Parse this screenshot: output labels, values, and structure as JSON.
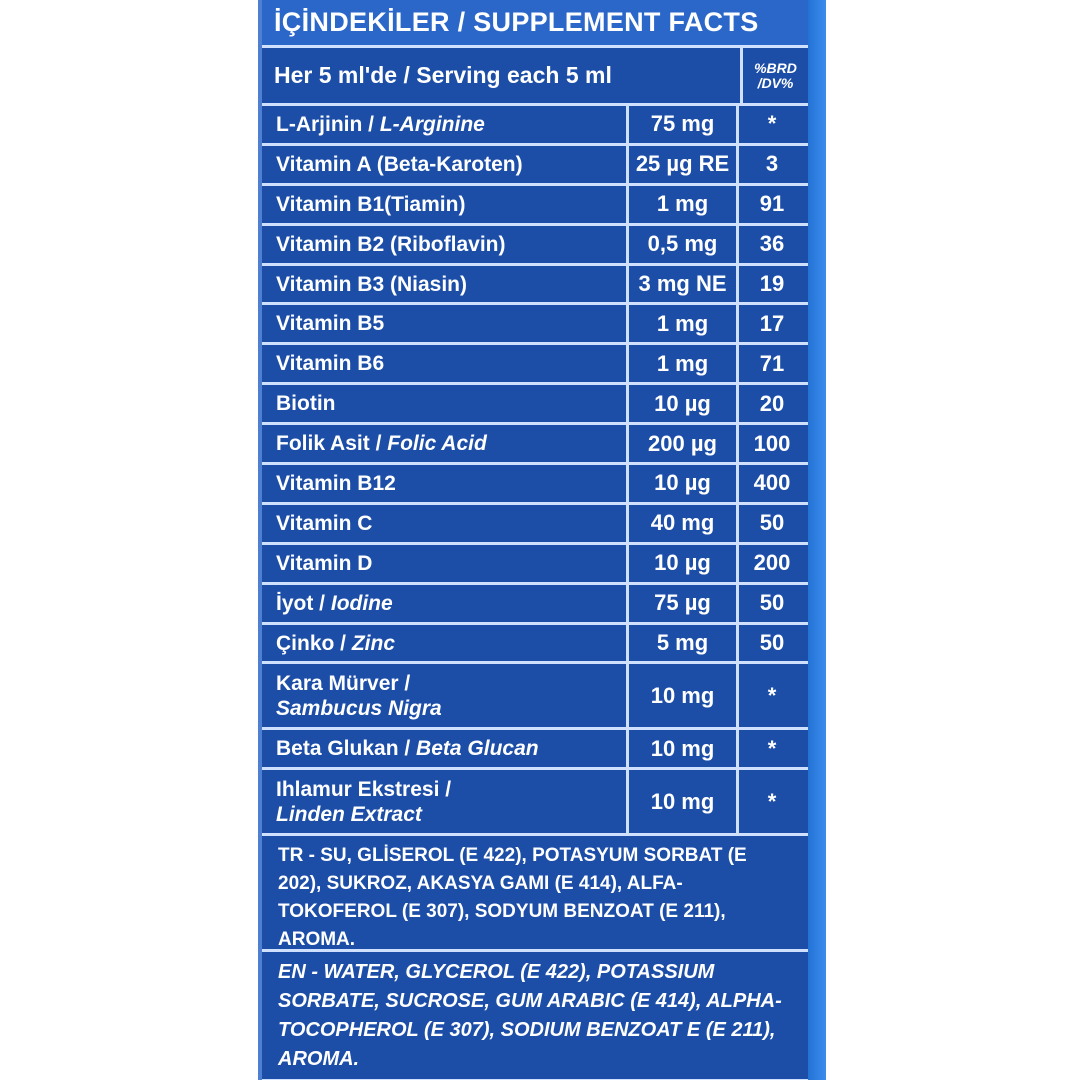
{
  "header": {
    "title": "İÇİNDEKİLER / SUPPLEMENT FACTS"
  },
  "serving": {
    "label": "Her 5 ml'de / Serving each 5 ml",
    "dv_line1": "%BRD",
    "dv_line2": "/DV%"
  },
  "rows": [
    {
      "name": "L-Arjinin / ",
      "name_it": "L-Arginine",
      "amount": "75 mg",
      "dv": "*"
    },
    {
      "name": "Vitamin A (Beta-Karoten)",
      "name_it": "",
      "amount": "25 µg RE",
      "dv": "3"
    },
    {
      "name": "Vitamin B1(Tiamin)",
      "name_it": "",
      "amount": "1 mg",
      "dv": "91"
    },
    {
      "name": "Vitamin B2 (Riboflavin)",
      "name_it": "",
      "amount": "0,5 mg",
      "dv": "36"
    },
    {
      "name": "Vitamin B3 (Niasin)",
      "name_it": "",
      "amount": "3 mg NE",
      "dv": "19"
    },
    {
      "name": "Vitamin B5",
      "name_it": "",
      "amount": "1 mg",
      "dv": "17"
    },
    {
      "name": "Vitamin B6",
      "name_it": "",
      "amount": "1 mg",
      "dv": "71"
    },
    {
      "name": "Biotin",
      "name_it": "",
      "amount": "10 µg",
      "dv": "20"
    },
    {
      "name": "Folik Asit / ",
      "name_it": "Folic Acid",
      "amount": "200 µg",
      "dv": "100"
    },
    {
      "name": "Vitamin B12",
      "name_it": "",
      "amount": "10 µg",
      "dv": "400"
    },
    {
      "name": "Vitamin C",
      "name_it": "",
      "amount": "40 mg",
      "dv": "50"
    },
    {
      "name": "Vitamin D",
      "name_it": "",
      "amount": "10 µg",
      "dv": "200"
    },
    {
      "name": "İyot / ",
      "name_it": "Iodine",
      "amount": "75 µg",
      "dv": "50"
    },
    {
      "name": "Çinko / ",
      "name_it": "Zinc",
      "amount": "5 mg",
      "dv": "50"
    }
  ],
  "tall_rows": [
    {
      "line1": "Kara Mürver /",
      "line2": "Sambucus Nigra",
      "amount": "10 mg",
      "dv": "*"
    }
  ],
  "beta": {
    "name": "Beta Glukan / ",
    "name_it": "Beta Glucan",
    "amount": "10 mg",
    "dv": "*"
  },
  "linden": {
    "line1": "Ihlamur Ekstresi /",
    "line2": "Linden Extract",
    "amount": "10 mg",
    "dv": "*"
  },
  "ingredients": {
    "tr": "TR - SU, GLİSEROL (E 422), POTASYUM SORBAT (E 202), SUKROZ, AKASYA GAMI (E 414), ALFA-TOKOFEROL (E 307), SODYUM BENZOAT (E 211), AROMA.",
    "en": "EN - WATER, GLYCEROL (E 422), POTASSIUM SORBATE, SUCROSE, GUM ARABIC (E 414), ALPHA-TOCOPHEROL (E 307), SODIUM BENZOAT E (E 211), AROMA."
  }
}
